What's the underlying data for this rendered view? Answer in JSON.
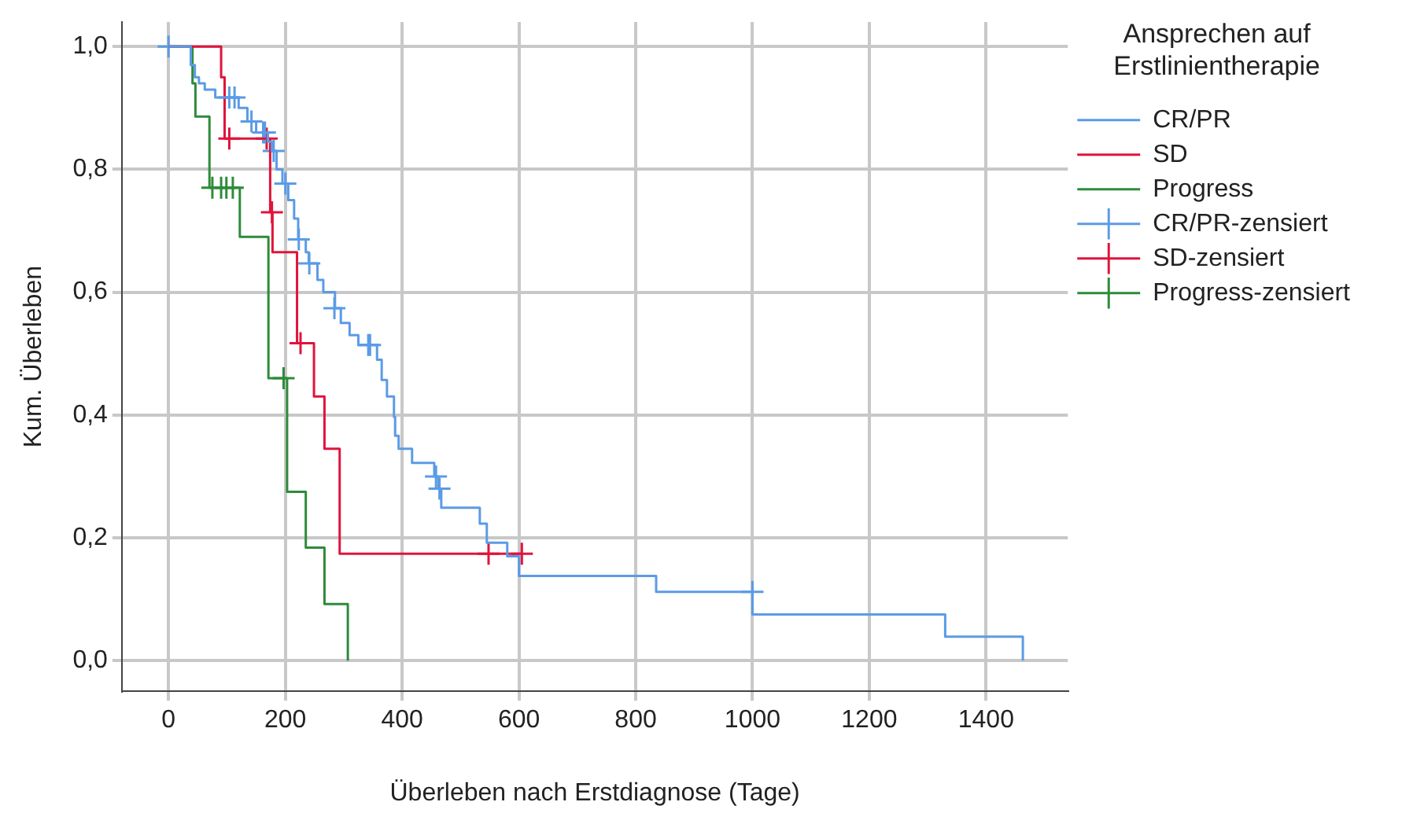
{
  "chart_data": {
    "type": "step",
    "xlabel": "Überleben nach Erstdiagnose (Tage)",
    "ylabel": "Kum. Überleben",
    "legend_title": "Ansprechen auf Erstlinientherapie",
    "legend": "right",
    "grid": true,
    "marker": "cross",
    "xlim": [
      -80,
      1540
    ],
    "xticks": [
      0,
      200,
      400,
      600,
      800,
      1000,
      1200,
      1400
    ],
    "ylim": [
      -0.05,
      1.04
    ],
    "yticks": [
      {
        "value": 0,
        "label": "0,0"
      },
      {
        "value": 0.2,
        "label": "0,2"
      },
      {
        "value": 0.4,
        "label": "0,4"
      },
      {
        "value": 0.6,
        "label": "0,6"
      },
      {
        "value": 0.8,
        "label": "0,8"
      },
      {
        "value": 1,
        "label": "1,0"
      }
    ],
    "series": [
      {
        "name": "CR/PR",
        "marker": "none",
        "color": "#5b9be6",
        "x": [
          0,
          38,
          45,
          52,
          62,
          80,
          120,
          135,
          150,
          170,
          177,
          185,
          195,
          205,
          215,
          222,
          235,
          240,
          255,
          265,
          285,
          295,
          310,
          325,
          357,
          365,
          374,
          386,
          388,
          394,
          417,
          455,
          462,
          467,
          533,
          545,
          580,
          600,
          835,
          1000,
          1330,
          1463
        ],
        "values": [
          1,
          0.97,
          0.95,
          0.94,
          0.93,
          0.917,
          0.9,
          0.878,
          0.86,
          0.845,
          0.83,
          0.8,
          0.777,
          0.75,
          0.72,
          0.686,
          0.665,
          0.647,
          0.62,
          0.6,
          0.574,
          0.55,
          0.53,
          0.514,
          0.49,
          0.457,
          0.43,
          0.397,
          0.366,
          0.345,
          0.322,
          0.3,
          0.28,
          0.249,
          0.223,
          0.192,
          0.17,
          0.138,
          0.112,
          0.075,
          0.039,
          0
        ]
      },
      {
        "name": "SD",
        "marker": "none",
        "color": "#e0143c",
        "x": [
          0,
          90,
          96,
          174,
          178,
          220,
          249,
          267,
          293,
          605
        ],
        "values": [
          1,
          0.95,
          0.85,
          0.73,
          0.665,
          0.517,
          0.43,
          0.345,
          0.174,
          0.174
        ]
      },
      {
        "name": "Progress",
        "marker": "none",
        "color": "#2e8b3a",
        "x": [
          0,
          41,
          46,
          70,
          122,
          171,
          203,
          235,
          267,
          307
        ],
        "values": [
          1,
          0.94,
          0.886,
          0.77,
          0.69,
          0.46,
          0.275,
          0.184,
          0.092,
          0
        ]
      },
      {
        "name": "CR/PR-zensiert",
        "type": "scatter",
        "color": "#5b9be6",
        "x": [
          0,
          104,
          113,
          142,
          162,
          165,
          180,
          200,
          223,
          241,
          284,
          342,
          345,
          458,
          464,
          1000
        ],
        "values": [
          1,
          0.917,
          0.917,
          0.878,
          0.86,
          0.86,
          0.83,
          0.777,
          0.686,
          0.647,
          0.574,
          0.514,
          0.514,
          0.3,
          0.28,
          0.112
        ]
      },
      {
        "name": "SD-zensiert",
        "type": "scatter",
        "color": "#e0143c",
        "x": [
          104,
          168,
          177,
          226,
          548,
          605
        ],
        "values": [
          0.85,
          0.85,
          0.73,
          0.517,
          0.174,
          0.174
        ]
      },
      {
        "name": "Progress-zensiert",
        "type": "scatter",
        "color": "#2e8b3a",
        "x": [
          75,
          90,
          99,
          110,
          197
        ],
        "values": [
          0.77,
          0.77,
          0.77,
          0.77,
          0.46
        ]
      }
    ]
  }
}
